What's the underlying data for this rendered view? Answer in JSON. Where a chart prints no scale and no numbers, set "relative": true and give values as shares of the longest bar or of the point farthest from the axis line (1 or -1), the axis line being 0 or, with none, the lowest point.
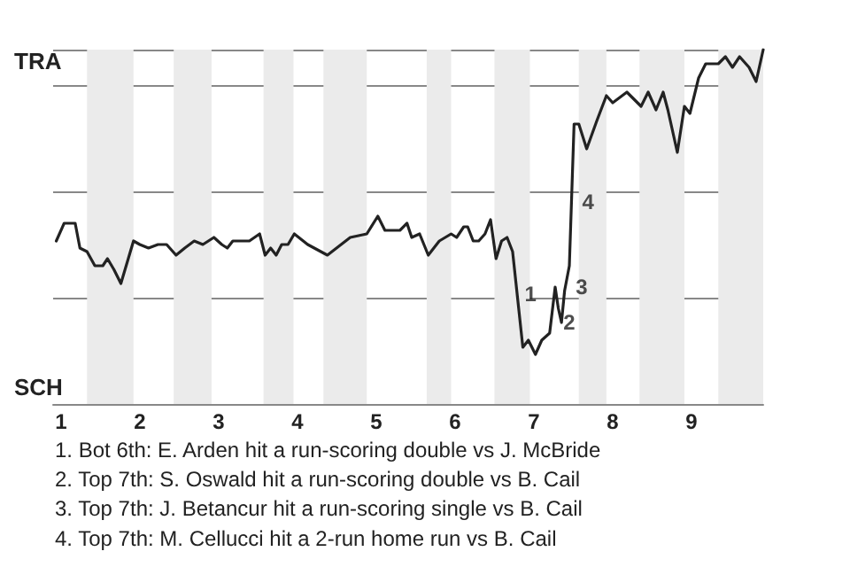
{
  "chart_data": {
    "type": "line",
    "relative": true,
    "xlim": [
      0.9,
      9.91
    ],
    "xticks": [
      1,
      2,
      3,
      4,
      5,
      6,
      7,
      8,
      9
    ],
    "x": [
      0.94,
      1.04,
      1.18,
      1.24,
      1.33,
      1.43,
      1.53,
      1.59,
      1.67,
      1.76,
      1.92,
      2.0,
      2.11,
      2.23,
      2.34,
      2.46,
      2.57,
      2.69,
      2.8,
      2.94,
      3.04,
      3.11,
      3.18,
      3.39,
      3.52,
      3.59,
      3.66,
      3.73,
      3.8,
      3.88,
      3.96,
      4.13,
      4.38,
      4.67,
      4.88,
      5.02,
      5.11,
      5.3,
      5.39,
      5.45,
      5.55,
      5.66,
      5.8,
      5.95,
      6.02,
      6.11,
      6.16,
      6.23,
      6.3,
      6.38,
      6.45,
      6.52,
      6.59,
      6.66,
      6.73,
      6.86,
      6.93,
      7.02,
      7.1,
      7.2,
      7.27,
      7.31,
      7.35,
      7.39,
      7.45,
      7.51,
      7.57,
      7.67,
      7.8,
      7.92,
      8.0,
      8.18,
      8.36,
      8.45,
      8.55,
      8.64,
      8.7,
      8.82,
      8.91,
      8.98,
      9.09,
      9.18,
      9.34,
      9.43,
      9.52,
      9.61,
      9.73,
      9.82,
      9.91
    ],
    "grid": "y",
    "marker": "none",
    "line_style": "solid",
    "series": [
      {
        "color": "#222222",
        "values": [
          0.46,
          0.51,
          0.51,
          0.44,
          0.43,
          0.39,
          0.39,
          0.41,
          0.38,
          0.34,
          0.46,
          0.45,
          0.44,
          0.45,
          0.45,
          0.42,
          0.44,
          0.46,
          0.45,
          0.47,
          0.45,
          0.44,
          0.46,
          0.46,
          0.48,
          0.42,
          0.44,
          0.42,
          0.45,
          0.45,
          0.48,
          0.45,
          0.42,
          0.47,
          0.48,
          0.53,
          0.49,
          0.49,
          0.51,
          0.47,
          0.48,
          0.42,
          0.46,
          0.48,
          0.47,
          0.5,
          0.5,
          0.46,
          0.46,
          0.48,
          0.52,
          0.41,
          0.46,
          0.47,
          0.43,
          0.16,
          0.18,
          0.14,
          0.18,
          0.2,
          0.33,
          0.27,
          0.23,
          0.32,
          0.39,
          0.79,
          0.79,
          0.72,
          0.8,
          0.87,
          0.85,
          0.88,
          0.84,
          0.88,
          0.83,
          0.88,
          0.83,
          0.71,
          0.84,
          0.82,
          0.92,
          0.96,
          0.96,
          0.98,
          0.95,
          0.98,
          0.95,
          0.91,
          1.0
        ]
      }
    ],
    "bands": [
      {
        "axis": "x",
        "from": 1.33,
        "to": 1.92,
        "color": "#ebebeb"
      },
      {
        "axis": "x",
        "from": 2.43,
        "to": 2.91,
        "color": "#ebebeb"
      },
      {
        "axis": "x",
        "from": 3.57,
        "to": 3.95,
        "color": "#ebebeb"
      },
      {
        "axis": "x",
        "from": 4.33,
        "to": 4.88,
        "color": "#ebebeb"
      },
      {
        "axis": "x",
        "from": 5.64,
        "to": 5.95,
        "color": "#ebebeb"
      },
      {
        "axis": "x",
        "from": 6.5,
        "to": 6.95,
        "color": "#ebebeb"
      },
      {
        "axis": "x",
        "from": 7.57,
        "to": 7.92,
        "color": "#ebebeb"
      },
      {
        "axis": "x",
        "from": 8.34,
        "to": 8.91,
        "color": "#ebebeb"
      },
      {
        "axis": "x",
        "from": 9.34,
        "to": 9.91,
        "color": "#ebebeb"
      }
    ],
    "annotations": [
      "TRA",
      "SCH",
      {
        "text": "1",
        "x": 6.86,
        "y": 0.31
      },
      {
        "text": "2",
        "x": 7.35,
        "y": 0.23
      },
      {
        "text": "3",
        "x": 7.51,
        "y": 0.33
      },
      {
        "text": "4",
        "x": 7.59,
        "y": 0.57
      },
      "1. Bot 6th: E. Arden hit a run-scoring double vs J. McBride",
      "2. Top 7th: S. Oswald hit a run-scoring double vs B. Cail",
      "3. Top 7th: J. Betancur hit a run-scoring single vs B. Cail",
      "4. Top 7th: M. Cellucci hit a 2-run home run vs B. Cail"
    ]
  }
}
